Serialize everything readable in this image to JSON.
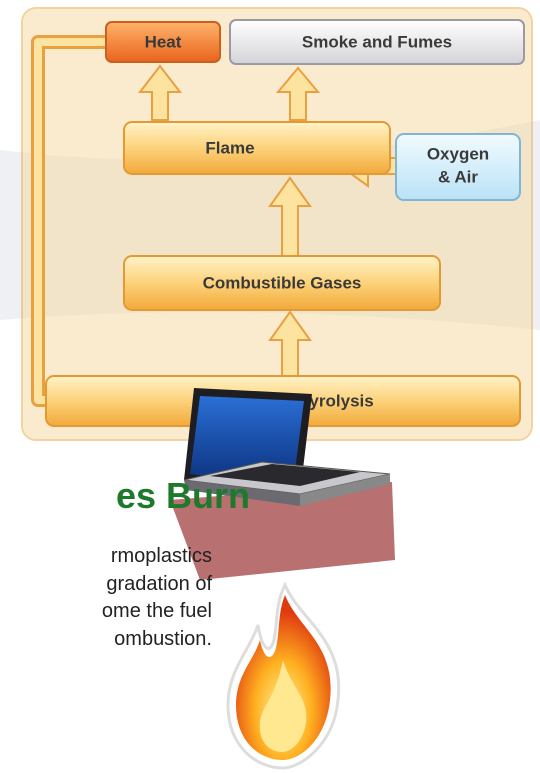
{
  "nodes": [
    {
      "label": "Heat"
    },
    {
      "label": "Smoke and Fumes"
    },
    {
      "label": "Flame"
    },
    {
      "lines": [
        "Oxygen",
        "& Air"
      ]
    },
    {
      "label": "Combustible Gases"
    },
    {
      "label": "Polymer Pyrolysis"
    }
  ],
  "heading": "es Burn",
  "body_lines": [
    "rmoplastics",
    "gradation of",
    "ome the fuel",
    "ombustion."
  ]
}
